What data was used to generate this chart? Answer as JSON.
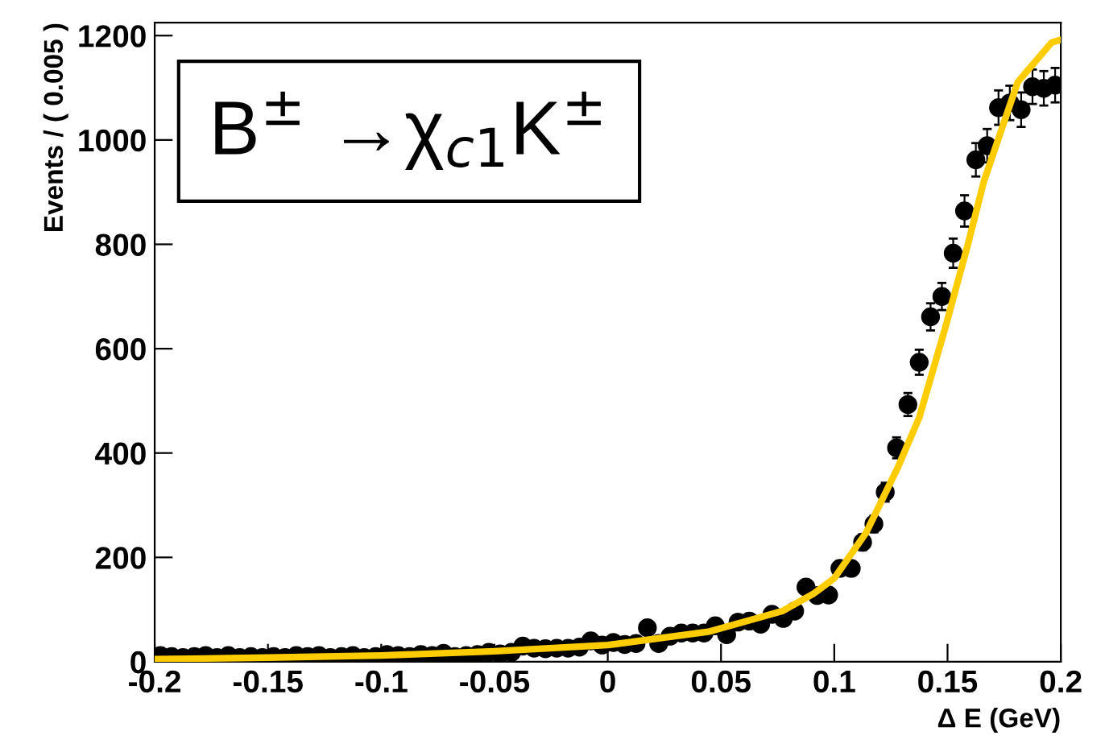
{
  "chart_data": {
    "type": "scatter",
    "xlabel": "Δ E (GeV)",
    "ylabel": "Events / ( 0.005 )",
    "annotations": [
      "B$^{±}$ →χ$_{c1}$K$^{±}$"
    ],
    "xlim": [
      -0.2,
      0.2
    ],
    "xticks": [
      -0.2,
      -0.15,
      -0.1,
      -0.05,
      0,
      0.05,
      0.1,
      0.15,
      0.2
    ],
    "ylim": [
      0,
      1225
    ],
    "yticks": [
      0,
      200,
      400,
      600,
      800,
      1000,
      1200
    ],
    "grid": false,
    "legend": false,
    "marker": "circle",
    "series": [
      {
        "color": "#000000",
        "x": [
          -0.1975,
          -0.1925,
          -0.1875,
          -0.1825,
          -0.1775,
          -0.1725,
          -0.1675,
          -0.1625,
          -0.1575,
          -0.1525,
          -0.1475,
          -0.1425,
          -0.1375,
          -0.1325,
          -0.1275,
          -0.1225,
          -0.1175,
          -0.1125,
          -0.1075,
          -0.1025,
          -0.0975,
          -0.0925,
          -0.0875,
          -0.0825,
          -0.0775,
          -0.0725,
          -0.0675,
          -0.0625,
          -0.0575,
          -0.0525,
          -0.0475,
          -0.0425,
          -0.0375,
          -0.0325,
          -0.0275,
          -0.0225,
          -0.0175,
          -0.0125,
          -0.0075,
          -0.0025,
          0.0025,
          0.0075,
          0.0125,
          0.0175,
          0.0225,
          0.0275,
          0.0325,
          0.0375,
          0.0425,
          0.0475,
          0.0525,
          0.0575,
          0.0625,
          0.0675,
          0.0725,
          0.0775,
          0.0825,
          0.0875,
          0.0925,
          0.0975,
          0.1025,
          0.1075,
          0.1125,
          0.1175,
          0.1225,
          0.1275,
          0.1325,
          0.1375,
          0.1425,
          0.1475,
          0.1525,
          0.1575,
          0.1625,
          0.1675,
          0.1725,
          0.1775,
          0.1825,
          0.1875,
          0.1925,
          0.1975
        ],
        "values": [
          12,
          10,
          8,
          10,
          12,
          8,
          12,
          8,
          10,
          8,
          10,
          8,
          12,
          10,
          12,
          8,
          10,
          12,
          8,
          10,
          14,
          12,
          10,
          14,
          12,
          16,
          10,
          12,
          14,
          18,
          15,
          18,
          30,
          26,
          25,
          26,
          26,
          28,
          40,
          32,
          37,
          33,
          35,
          65,
          35,
          49,
          55,
          55,
          55,
          69,
          52,
          76,
          78,
          72,
          91,
          83,
          97,
          143,
          127,
          128,
          179,
          179,
          229,
          264,
          325,
          410,
          493,
          574,
          661,
          700,
          783,
          864,
          962,
          989,
          1062,
          1071,
          1058,
          1102,
          1099,
          1105
        ],
        "errors": [
          null,
          null,
          null,
          null,
          null,
          null,
          null,
          null,
          null,
          null,
          null,
          null,
          null,
          null,
          null,
          null,
          null,
          null,
          null,
          null,
          null,
          null,
          null,
          null,
          null,
          null,
          null,
          null,
          null,
          null,
          null,
          null,
          null,
          null,
          null,
          null,
          null,
          null,
          null,
          null,
          null,
          null,
          null,
          null,
          null,
          null,
          null,
          null,
          null,
          null,
          null,
          null,
          null,
          null,
          null,
          null,
          null,
          null,
          null,
          null,
          14,
          14,
          15,
          16,
          18,
          20,
          22,
          24,
          26,
          26,
          28,
          30,
          32,
          32,
          33,
          33,
          33,
          33,
          33,
          33
        ]
      },
      {
        "type": "line",
        "color": "#ffcc00",
        "marker": "none",
        "line_style": "solid",
        "x": [
          -0.2,
          -0.15,
          -0.1,
          -0.05,
          0,
          0.045,
          0.077,
          0.091,
          0.1,
          0.114,
          0.128,
          0.1375,
          0.149,
          0.159,
          0.166,
          0.181,
          0.196,
          0.2
        ],
        "values": [
          5,
          8,
          12,
          20,
          32,
          58,
          97,
          131,
          160,
          247,
          372,
          468,
          640,
          800,
          920,
          1111,
          1187,
          1192
        ]
      }
    ]
  }
}
